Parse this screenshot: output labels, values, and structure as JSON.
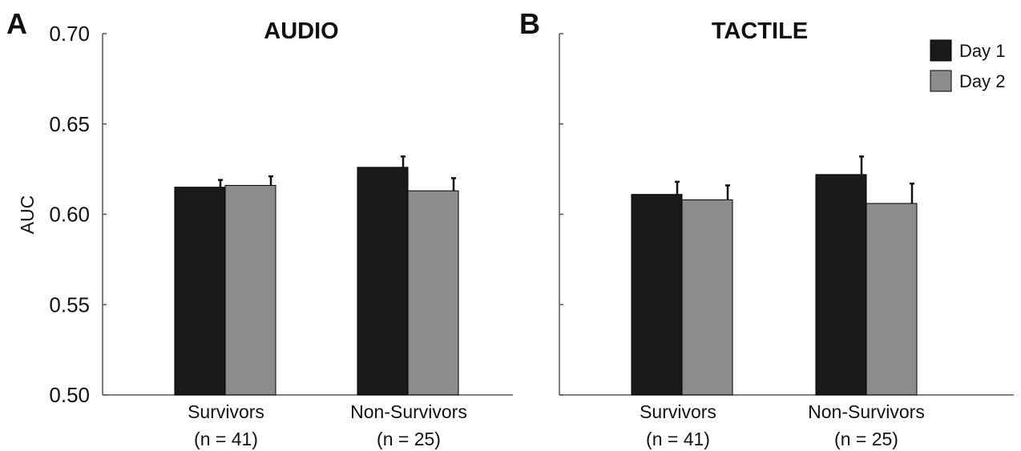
{
  "chart_data": [
    {
      "panel": "A",
      "type": "bar",
      "title": "AUDIO",
      "ylabel": "AUC",
      "xlabel": "",
      "ylim": [
        0.5,
        0.7
      ],
      "yticks": [
        "0.50",
        "0.55",
        "0.60",
        "0.65",
        "0.70"
      ],
      "categories": [
        [
          "Survivors",
          "(n = 41)"
        ],
        [
          "Non-Survivors",
          "(n = 25)"
        ]
      ],
      "series": [
        {
          "name": "Day 1",
          "color": "#1a1a1a",
          "values": [
            0.615,
            0.626
          ],
          "errors": [
            0.004,
            0.006
          ]
        },
        {
          "name": "Day 2",
          "color": "#8c8c8c",
          "values": [
            0.616,
            0.613
          ],
          "errors": [
            0.005,
            0.007
          ]
        }
      ],
      "grid": false
    },
    {
      "panel": "B",
      "type": "bar",
      "title": "TACTILE",
      "ylabel": "",
      "xlabel": "",
      "ylim": [
        0.5,
        0.7
      ],
      "yticks": [],
      "categories": [
        [
          "Survivors",
          "(n = 41)"
        ],
        [
          "Non-Survivors",
          "(n = 25)"
        ]
      ],
      "series": [
        {
          "name": "Day 1",
          "color": "#1a1a1a",
          "values": [
            0.611,
            0.622
          ],
          "errors": [
            0.007,
            0.01
          ]
        },
        {
          "name": "Day 2",
          "color": "#8c8c8c",
          "values": [
            0.608,
            0.606
          ],
          "errors": [
            0.008,
            0.011
          ]
        }
      ],
      "grid": false,
      "legend": {
        "position": "top-right",
        "entries": [
          "Day 1",
          "Day 2"
        ]
      }
    }
  ]
}
